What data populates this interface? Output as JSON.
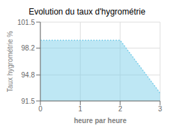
{
  "chart_data": {
    "type": "area",
    "title": "Evolution du taux d'hygrométrie",
    "xlabel": "heure par heure",
    "ylabel": "Taux hygrométrie %",
    "x": [
      0,
      2,
      3
    ],
    "values": [
      99.2,
      99.2,
      92.5
    ],
    "xlim": [
      0,
      3
    ],
    "ylim": [
      91.5,
      101.5
    ],
    "xticks": [
      0,
      1,
      2,
      3
    ],
    "yticks": [
      91.5,
      94.8,
      98.2,
      101.5
    ],
    "color": "#7ecfea",
    "line_style": "dotted",
    "grid": true
  }
}
